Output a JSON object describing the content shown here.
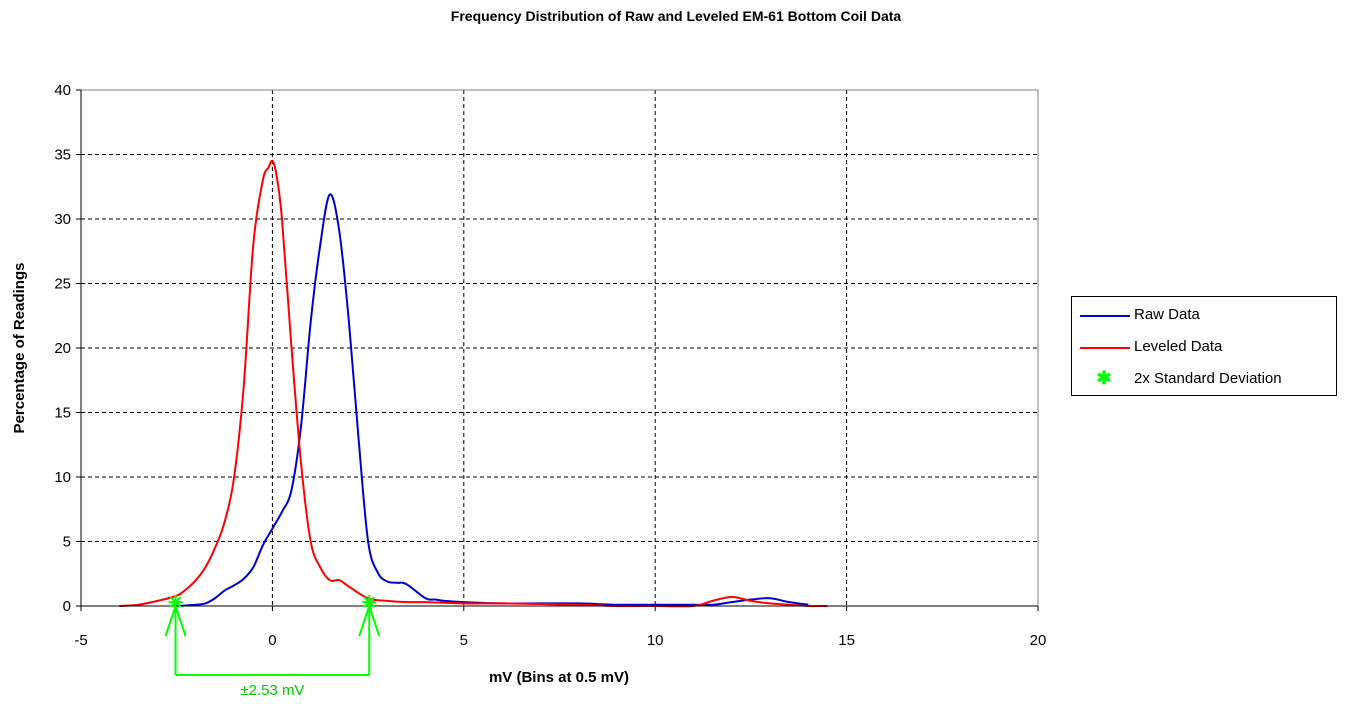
{
  "chart_data": {
    "type": "line",
    "title": "Frequency Distribution of Raw and Leveled EM-61 Bottom Coil Data",
    "xlabel": "mV (Bins at 0.5 mV)",
    "ylabel": "Percentage of Readings",
    "xlim": [
      -5,
      20
    ],
    "ylim": [
      0,
      40
    ],
    "xticks": [
      -5,
      0,
      5,
      10,
      15,
      20
    ],
    "yticks": [
      0,
      5,
      10,
      15,
      20,
      25,
      30,
      35,
      40
    ],
    "grid": true,
    "legend_position": "right",
    "series": [
      {
        "name": "Raw Data",
        "color": "#0000cc",
        "x": [
          -2.5,
          -2,
          -1.75,
          -1.5,
          -1.25,
          -1,
          -0.75,
          -0.5,
          -0.25,
          0,
          0.25,
          0.5,
          0.75,
          1,
          1.25,
          1.5,
          1.75,
          2,
          2.25,
          2.5,
          2.75,
          3,
          3.25,
          3.5,
          4,
          4.25,
          4.5,
          5,
          6,
          7,
          8,
          9,
          10,
          11,
          11.5,
          12,
          12.5,
          13,
          13.5,
          14
        ],
        "y": [
          0,
          0.1,
          0.2,
          0.6,
          1.2,
          1.6,
          2.1,
          3.0,
          4.7,
          6.0,
          7.3,
          9.0,
          14.0,
          22.0,
          28.0,
          31.9,
          29.0,
          22.0,
          13.0,
          5.0,
          2.6,
          1.9,
          1.8,
          1.7,
          0.6,
          0.5,
          0.4,
          0.3,
          0.2,
          0.2,
          0.2,
          0.1,
          0.1,
          0.1,
          0.1,
          0.3,
          0.5,
          0.6,
          0.3,
          0.1
        ]
      },
      {
        "name": "Leveled Data",
        "color": "#ff0000",
        "x": [
          -4,
          -3.5,
          -3,
          -2.5,
          -2.25,
          -2,
          -1.75,
          -1.5,
          -1.25,
          -1,
          -0.75,
          -0.5,
          -0.25,
          -0.1,
          0,
          0.1,
          0.25,
          0.5,
          0.75,
          1,
          1.25,
          1.5,
          1.75,
          2,
          2.5,
          3,
          3.5,
          4,
          5,
          6,
          8,
          9,
          10,
          11,
          11.5,
          12,
          12.5,
          13,
          13.5,
          14,
          14.5
        ],
        "y": [
          0,
          0.1,
          0.4,
          0.8,
          1.3,
          2.0,
          3.0,
          4.5,
          6.5,
          10.0,
          17.0,
          28.0,
          33.0,
          34.0,
          34.5,
          33.5,
          30.0,
          20.0,
          11.0,
          5.0,
          3.0,
          2.0,
          2.0,
          1.5,
          0.6,
          0.4,
          0.3,
          0.3,
          0.2,
          0.2,
          0.1,
          0.0,
          0.0,
          0.0,
          0.4,
          0.7,
          0.4,
          0.2,
          0.1,
          0.0,
          0.0
        ]
      },
      {
        "name": "2x Standard Deviation",
        "color": "#00ff00",
        "marker": "star",
        "x": [
          -2.53,
          2.53
        ],
        "y": [
          0.3,
          0.3
        ]
      }
    ],
    "annotations": [
      {
        "text": "±2.53 mV",
        "from_x": -2.53,
        "to_x": 2.53,
        "color": "#00cc00"
      }
    ]
  }
}
